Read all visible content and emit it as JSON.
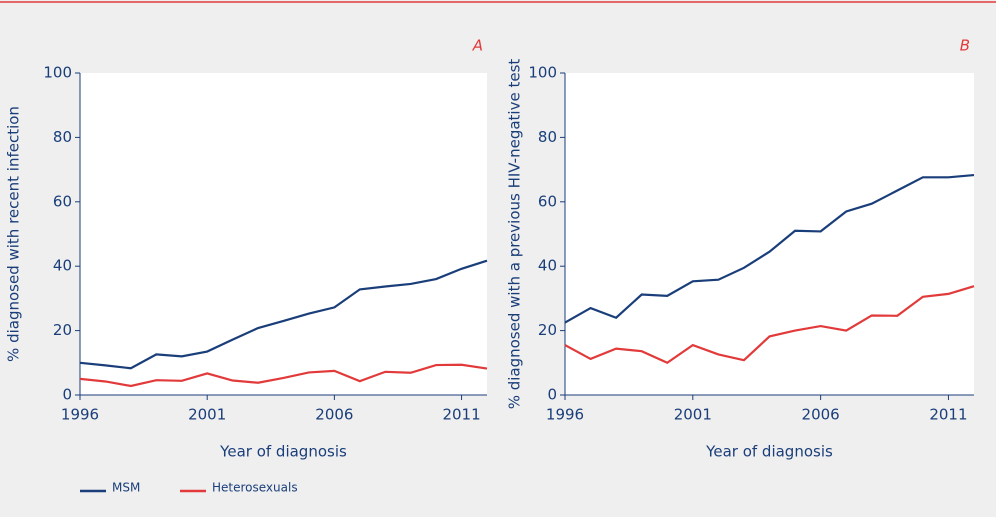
{
  "chart_data": [
    {
      "type": "line",
      "panel": "A",
      "xlabel": "Year of diagnosis",
      "ylabel": "% diagnosed with recent infection",
      "x": [
        1996,
        1997,
        1998,
        1999,
        2000,
        2001,
        2002,
        2003,
        2004,
        2005,
        2006,
        2007,
        2008,
        2009,
        2010,
        2011,
        2012
      ],
      "series": [
        {
          "name": "MSM",
          "color": "#1a3e7a",
          "values": [
            10,
            9.2,
            8.3,
            12.6,
            12,
            13.5,
            17.2,
            20.8,
            23,
            25.3,
            27.2,
            32.8,
            33.7,
            34.5,
            36,
            39.2,
            41.7
          ]
        },
        {
          "name": "Heterosexuals",
          "color": "#e23a3a",
          "values": [
            5,
            4.2,
            2.8,
            4.6,
            4.4,
            6.7,
            4.5,
            3.8,
            5.3,
            7,
            7.5,
            4.3,
            7.2,
            6.9,
            9.3,
            9.4,
            8.2
          ]
        }
      ],
      "xlim": [
        1996,
        2012
      ],
      "xticks": [
        1996,
        2001,
        2006,
        2011
      ],
      "ylim": [
        0,
        100
      ],
      "yticks": [
        0,
        20,
        40,
        60,
        80,
        100
      ]
    },
    {
      "type": "line",
      "panel": "B",
      "xlabel": "Year of diagnosis",
      "ylabel": "% diagnosed with a previous HIV-negative test",
      "x": [
        1996,
        1997,
        1998,
        1999,
        2000,
        2001,
        2002,
        2003,
        2004,
        2005,
        2006,
        2007,
        2008,
        2009,
        2010,
        2011,
        2012
      ],
      "series": [
        {
          "color": "#1a3e7a",
          "values": [
            22.5,
            27,
            24,
            31.2,
            30.8,
            35.3,
            35.8,
            39.5,
            44.5,
            51,
            50.8,
            57,
            59.4,
            63.5,
            67.6,
            67.6,
            68.3
          ]
        },
        {
          "color": "#e23a3a",
          "values": [
            15.5,
            11.2,
            14.4,
            13.6,
            10,
            15.5,
            12.6,
            10.8,
            18.2,
            20,
            21.4,
            20,
            24.7,
            24.6,
            30.5,
            31.4,
            33.8
          ]
        }
      ],
      "xlim": [
        1996,
        2012
      ],
      "xticks": [
        1996,
        2001,
        2006,
        2011
      ],
      "ylim": [
        0,
        100
      ],
      "yticks": [
        0,
        20,
        40,
        60,
        80,
        100
      ]
    }
  ]
}
